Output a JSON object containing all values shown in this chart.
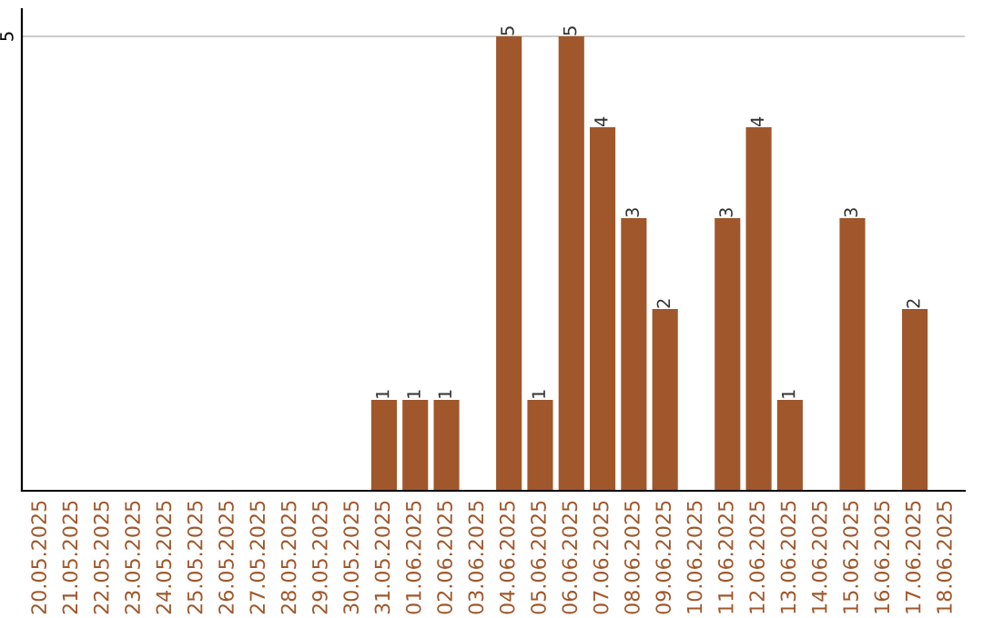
{
  "chart_data": {
    "type": "bar",
    "categories": [
      "20.05.2025",
      "21.05.2025",
      "22.05.2025",
      "23.05.2025",
      "24.05.2025",
      "25.05.2025",
      "26.05.2025",
      "27.05.2025",
      "28.05.2025",
      "29.05.2025",
      "30.05.2025",
      "31.05.2025",
      "01.06.2025",
      "02.06.2025",
      "03.06.2025",
      "04.06.2025",
      "05.06.2025",
      "06.06.2025",
      "07.06.2025",
      "08.06.2025",
      "09.06.2025",
      "10.06.2025",
      "11.06.2025",
      "12.06.2025",
      "13.06.2025",
      "14.06.2025",
      "15.06.2025",
      "16.06.2025",
      "17.06.2025",
      "18.06.2025"
    ],
    "values": [
      0,
      0,
      0,
      0,
      0,
      0,
      0,
      0,
      0,
      0,
      0,
      1,
      1,
      1,
      0,
      5,
      1,
      5,
      4,
      3,
      2,
      0,
      3,
      4,
      1,
      0,
      3,
      0,
      2,
      0
    ],
    "value_labels": [
      null,
      null,
      null,
      null,
      null,
      null,
      null,
      null,
      null,
      null,
      null,
      "1",
      "1",
      "1",
      null,
      "5",
      "1",
      "5",
      "4",
      "3",
      "2",
      null,
      "3",
      "4",
      "1",
      null,
      "3",
      null,
      "2",
      null
    ],
    "color": "#a0572b",
    "ylim": [
      0,
      5.3
    ],
    "yticks": [
      5
    ],
    "grid": "y"
  }
}
